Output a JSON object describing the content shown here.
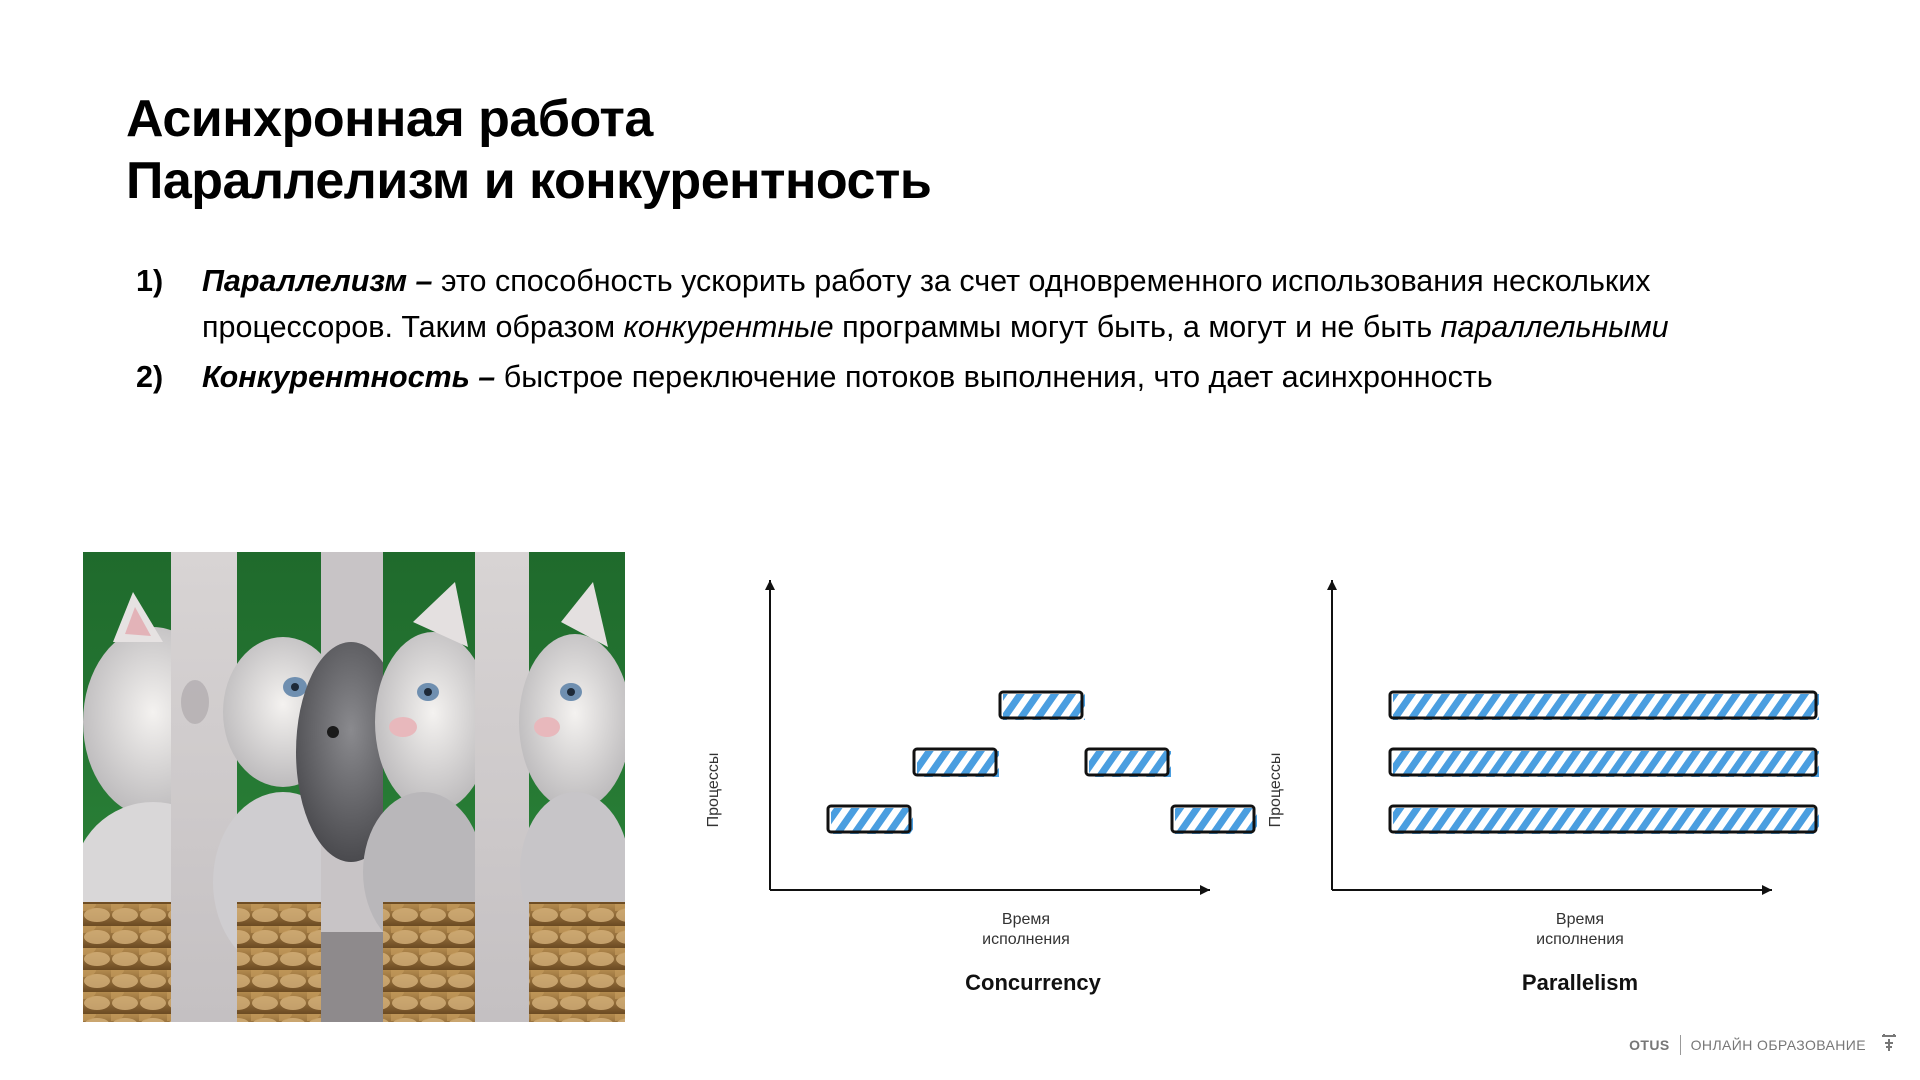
{
  "slide": {
    "title_line1": "Асинхронная работа",
    "title_line2": "Параллелизм и конкурентность"
  },
  "points": [
    {
      "number": "1)",
      "term": "Параллелизм –",
      "text_a": " это способность ускорить работу за счет одновременного использования нескольких процессоров. Таким образом ",
      "em1": "конкурентные",
      "text_b": " программы могут быть, а могут и не быть ",
      "em2": "параллельными"
    },
    {
      "number": "2)",
      "term": "Конкурентность –",
      "text_a": " быстрое переключение потоков выполнения, что дает асинхронность"
    }
  ],
  "illustration": {
    "icon": "kitten-strips-photo"
  },
  "diagrams": {
    "concurrency": {
      "caption": "Concurrency",
      "ylabel": "Процессы",
      "xlabel_line1": "Время",
      "xlabel_line2": "исполнения",
      "rows": 3,
      "time_span": [
        0,
        5
      ],
      "tasks": [
        {
          "row": 0,
          "start": 0,
          "end": 1
        },
        {
          "row": 1,
          "start": 1,
          "end": 2
        },
        {
          "row": 2,
          "start": 2,
          "end": 3
        },
        {
          "row": 1,
          "start": 3,
          "end": 4
        },
        {
          "row": 0,
          "start": 4,
          "end": 5
        }
      ]
    },
    "parallelism": {
      "caption": "Parallelism",
      "ylabel": "Процессы",
      "xlabel_line1": "Время",
      "xlabel_line2": "исполнения",
      "rows": 3,
      "time_span": [
        0,
        5
      ],
      "tasks": [
        {
          "row": 0,
          "start": 0,
          "end": 5
        },
        {
          "row": 1,
          "start": 0,
          "end": 5
        },
        {
          "row": 2,
          "start": 0,
          "end": 5
        }
      ]
    },
    "bar_color": "#4a9ee0",
    "outline_color": "#111111"
  },
  "footer": {
    "brand": "OTUS",
    "tagline": "ОНЛАЙН ОБРАЗОВАНИЕ",
    "icon": "otus-owl-icon"
  }
}
